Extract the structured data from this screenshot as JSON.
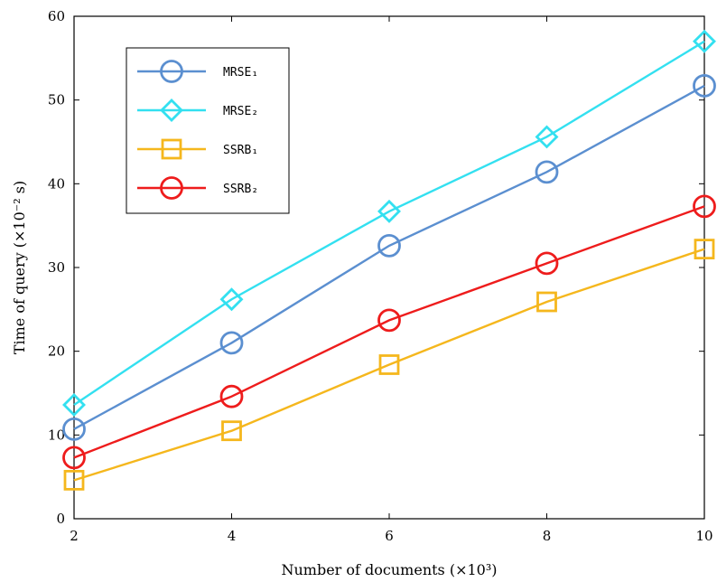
{
  "chart_data": {
    "type": "line",
    "xlabel": "Number of documents  (×10³)",
    "ylabel": "Time of query  (×10⁻² s)",
    "xlim": [
      2,
      10
    ],
    "ylim": [
      0,
      60
    ],
    "xticks": [
      2,
      4,
      6,
      8,
      10
    ],
    "yticks": [
      0,
      10,
      20,
      30,
      40,
      50,
      60
    ],
    "x": [
      2,
      4,
      6,
      8,
      10
    ],
    "grid": false,
    "legend_position": "top-left",
    "series": [
      {
        "name": "MRSE₁",
        "marker": "circle",
        "color": "#5b8fd0",
        "values": [
          10.7,
          21.0,
          32.6,
          41.4,
          51.7
        ]
      },
      {
        "name": "MRSE₂",
        "marker": "diamond",
        "color": "#33e0f0",
        "values": [
          13.6,
          26.2,
          36.7,
          45.6,
          57.0
        ]
      },
      {
        "name": "SSRB₁",
        "marker": "square",
        "color": "#f5b71d",
        "values": [
          4.6,
          10.5,
          18.4,
          25.9,
          32.2
        ]
      },
      {
        "name": "SSRB₂",
        "marker": "circle",
        "color": "#ee1c1c",
        "values": [
          7.3,
          14.6,
          23.7,
          30.5,
          37.3
        ]
      }
    ]
  }
}
